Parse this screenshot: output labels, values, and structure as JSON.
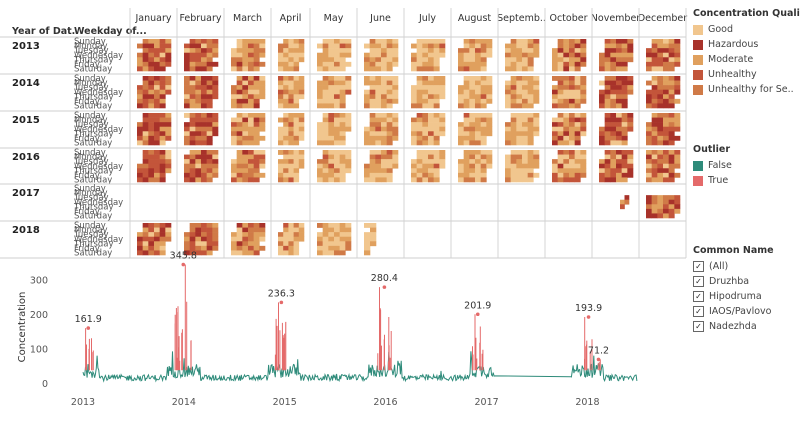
{
  "heatmap": {
    "row_header": "Year of Dat..",
    "day_header": "Weekday of...",
    "months": [
      "January",
      "February",
      "March",
      "April",
      "May",
      "June",
      "July",
      "August",
      "Septemb..",
      "October",
      "November",
      "December"
    ],
    "years": [
      "2013",
      "2014",
      "2015",
      "2016",
      "2017",
      "2018"
    ],
    "weekdays": [
      "Sunday",
      "Monday",
      "Tuesday",
      "Wednesday",
      "Thursday",
      "Friday",
      "Saturday"
    ]
  },
  "legend_quality": {
    "title": "Concentration Quality",
    "items": [
      {
        "label": "Good",
        "color": "#F1C68E"
      },
      {
        "label": "Hazardous",
        "color": "#A8322A"
      },
      {
        "label": "Moderate",
        "color": "#E0A05E"
      },
      {
        "label": "Unhealthy",
        "color": "#C3553A"
      },
      {
        "label": "Unhealthy for Se..",
        "color": "#D07A47"
      }
    ]
  },
  "legend_outlier": {
    "title": "Outlier",
    "items": [
      {
        "label": "False",
        "color": "#2E8B7A"
      },
      {
        "label": "True",
        "color": "#E46A6A"
      }
    ]
  },
  "legend_common": {
    "title": "Common Name",
    "items": [
      {
        "label": "(All)",
        "checked": true
      },
      {
        "label": "Druzhba",
        "checked": true
      },
      {
        "label": "Hipodruma",
        "checked": true
      },
      {
        "label": "IAOS/Pavlovo",
        "checked": true
      },
      {
        "label": "Nadezhda",
        "checked": true
      }
    ]
  },
  "chart_data": {
    "type": "line",
    "title": "",
    "xlabel": "",
    "ylabel": "Concentration",
    "x_ticks": [
      "2013",
      "2014",
      "2015",
      "2016",
      "2017",
      "2018"
    ],
    "y_ticks": [
      0,
      100,
      200,
      300
    ],
    "ylim": [
      0,
      330
    ],
    "xlim": [
      "2013-01-01",
      "2018-12-31"
    ],
    "grid": false,
    "series": [
      {
        "name": "False",
        "color": "#2E8B7A"
      },
      {
        "name": "True",
        "color": "#E46A6A"
      }
    ],
    "annotations": [
      {
        "x": "2013-01-20",
        "y": 161.9,
        "label": "161.9"
      },
      {
        "x": "2013-12-30",
        "y": 345.8,
        "label": "345.8"
      },
      {
        "x": "2014-12-20",
        "y": 236.3,
        "label": "236.3"
      },
      {
        "x": "2015-12-28",
        "y": 280.4,
        "label": "280.4"
      },
      {
        "x": "2016-11-30",
        "y": 201.9,
        "label": "201.9"
      },
      {
        "x": "2018-01-05",
        "y": 193.9,
        "label": "193.9"
      },
      {
        "x": "2018-02-10",
        "y": 71.2,
        "label": "71.2"
      }
    ],
    "data_gap": {
      "from": "2017-02-01",
      "to": "2017-11-01"
    }
  }
}
